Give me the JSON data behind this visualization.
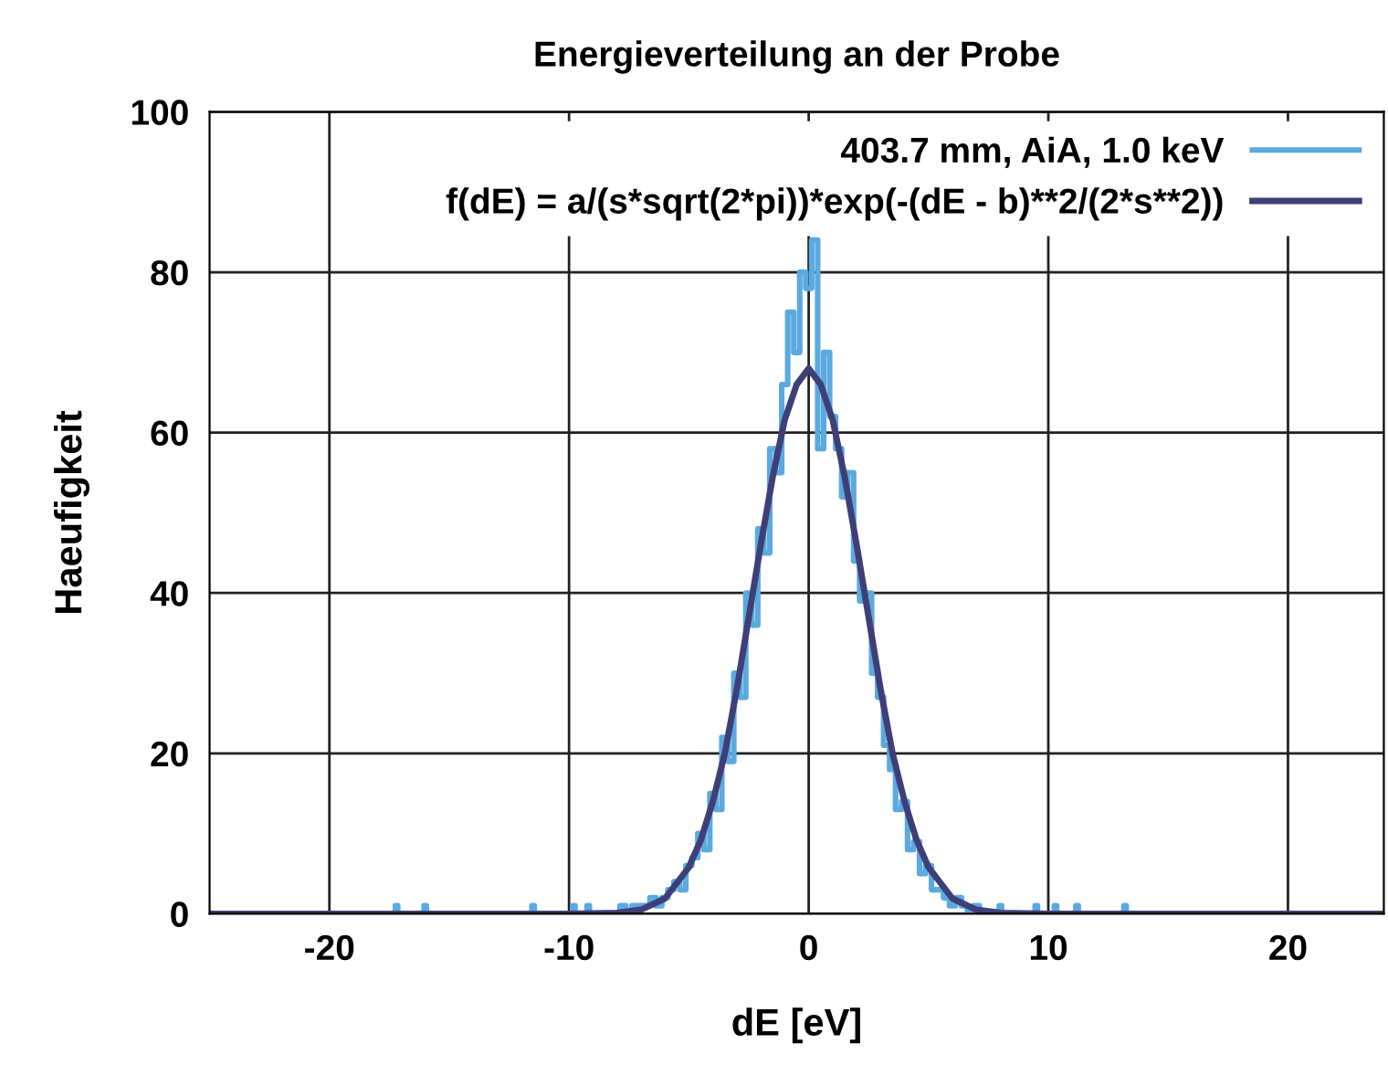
{
  "chart_data": {
    "type": "step",
    "title": "Energieverteilung an der Probe",
    "xlabel": "dE [eV]",
    "ylabel": "Haeufigkeit",
    "xlim": [
      -25,
      24
    ],
    "ylim": [
      0,
      100
    ],
    "xticks": [
      -20,
      -10,
      0,
      10,
      20
    ],
    "yticks": [
      0,
      20,
      40,
      60,
      80,
      100
    ],
    "grid": true,
    "legend": "top right",
    "series": [
      {
        "name": "403.7 mm, AiA, 1.0 keV",
        "color": "#5aaae0",
        "x": [
          -25,
          -17.3,
          -17.2,
          -17.1,
          -16.1,
          -16.0,
          -15.9,
          -11.6,
          -11.5,
          -11.4,
          -9.9,
          -9.8,
          -9.7,
          -9.3,
          -9.2,
          -9.1,
          -8.25,
          -8.0,
          -7.75,
          -7.5,
          -7.25,
          -7.0,
          -6.75,
          -6.5,
          -6.25,
          -6.0,
          -5.75,
          -5.5,
          -5.25,
          -5.0,
          -4.75,
          -4.5,
          -4.25,
          -4.0,
          -3.75,
          -3.5,
          -3.25,
          -3.0,
          -2.75,
          -2.5,
          -2.25,
          -2.0,
          -1.75,
          -1.5,
          -1.25,
          -1.0,
          -0.75,
          -0.5,
          -0.25,
          0.0,
          0.25,
          0.5,
          0.75,
          1.0,
          1.25,
          1.5,
          1.75,
          2.0,
          2.25,
          2.5,
          2.75,
          3.0,
          3.25,
          3.5,
          3.75,
          4.0,
          4.25,
          4.5,
          4.75,
          5.0,
          5.25,
          5.5,
          5.75,
          6.0,
          6.25,
          6.5,
          6.75,
          7.0,
          7.25,
          7.9,
          8.0,
          8.1,
          9.4,
          9.5,
          9.6,
          10.2,
          10.3,
          10.4,
          11.1,
          11.2,
          11.3,
          13.1,
          13.2,
          13.3,
          24
        ],
        "values": [
          0,
          0,
          1,
          0,
          0,
          1,
          0,
          0,
          1,
          0,
          0,
          1,
          0,
          0,
          1,
          0,
          0,
          0,
          1,
          0,
          1,
          1,
          1,
          2,
          1,
          2,
          3,
          4,
          3,
          6,
          7,
          10,
          8,
          15,
          13,
          22,
          19,
          30,
          27,
          40,
          36,
          48,
          45,
          58,
          55,
          66,
          75,
          70,
          80,
          78,
          84,
          58,
          70,
          62,
          58,
          52,
          55,
          44,
          39,
          40,
          30,
          27,
          21,
          18,
          13,
          14,
          8,
          9,
          5,
          6,
          3,
          3,
          2,
          1,
          2,
          1,
          0,
          1,
          0,
          0,
          1,
          0,
          0,
          1,
          0,
          0,
          1,
          0,
          0,
          1,
          0,
          0,
          1,
          0,
          0
        ]
      },
      {
        "name": "f(dE) = a/(s*sqrt(2*pi))*exp(-(dE - b)**2/(2*s**2))",
        "type": "line",
        "color": "#3f3f78",
        "x": [
          -25,
          -10,
          -8,
          -7,
          -6,
          -5,
          -4.5,
          -4,
          -3.5,
          -3,
          -2.5,
          -2,
          -1.5,
          -1,
          -0.5,
          0,
          0.5,
          1,
          1.5,
          2,
          2.5,
          3,
          3.5,
          4,
          4.5,
          5,
          6,
          7,
          8,
          10,
          24
        ],
        "values": [
          0,
          0,
          0.1,
          0.5,
          1.9,
          5.8,
          9.2,
          14,
          20,
          28,
          37,
          46,
          54.5,
          61.6,
          66,
          68,
          66,
          61.6,
          54.5,
          46,
          37,
          28,
          20,
          14,
          9.2,
          5.8,
          1.9,
          0.5,
          0.1,
          0,
          0
        ]
      }
    ]
  }
}
